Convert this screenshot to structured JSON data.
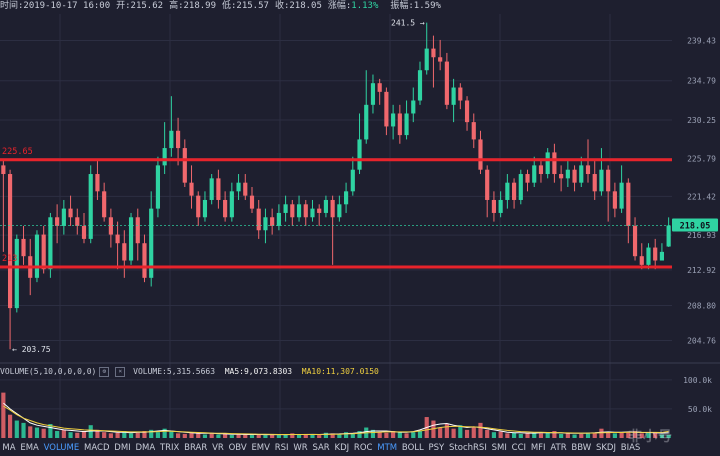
{
  "header": {
    "time_label": "时间:2019-10-17 16:00",
    "open_label": "开:215.62",
    "high_label": "高:218.99",
    "low_label": "低:215.57",
    "close_label": "收:218.05",
    "change_label": "涨幅:",
    "change_value": "1.13%",
    "amp_label": "振幅:1.59%"
  },
  "volume_bar": {
    "title": "VOLUME(5,10,0,0,0,0)",
    "volume": "VOLUME:5,315.5663",
    "ma5": "MA5:9,073.8303",
    "ma10": "MA10:11,307.0150"
  },
  "tabs": [
    "MA",
    "EMA",
    "VOLUME",
    "MACD",
    "DMI",
    "DMA",
    "TRIX",
    "BRAR",
    "VR",
    "OBV",
    "EMV",
    "RSI",
    "WR",
    "SAR",
    "KDJ",
    "ROC",
    "MTM",
    "BOLL",
    "PSY",
    "StochRSI",
    "SMI",
    "CCI",
    "MFI",
    "ATR",
    "BBW",
    "SKDJ",
    "BIAS"
  ],
  "active_tabs": [
    "VOLUME",
    "MTM"
  ],
  "logo": "非小号",
  "chart_data": {
    "type": "candlestick",
    "y_ticks": [
      "239.43",
      "234.79",
      "230.25",
      "225.79",
      "221.42",
      "216.93",
      "212.92",
      "208.80",
      "204.76"
    ],
    "y_tick_values": [
      239.43,
      234.79,
      230.25,
      225.79,
      221.42,
      216.93,
      212.92,
      208.8,
      204.76
    ],
    "ylim": [
      202.5,
      242.5
    ],
    "vol_ticks": [
      "100.0k",
      "50.0k"
    ],
    "vol_tick_values": [
      100000,
      50000
    ],
    "vol_max": 110000,
    "current_price": "218.05",
    "current_value": 218.05,
    "max_annotation": "241.5",
    "max_value": 241.5,
    "min_annotation": "203.75",
    "min_value": 203.75,
    "hlines": [
      {
        "value": 225.65,
        "label": "225.65",
        "color": "#e8232b"
      },
      {
        "value": 213.25,
        "label": "213",
        "color": "#e8232b"
      }
    ],
    "colors": {
      "up": "#2fd3a2",
      "down": "#f0686d",
      "grid": "#2c2e42",
      "ma5": "#ffffff",
      "ma10": "#f0d040"
    },
    "candles": [
      [
        225.0,
        224.0,
        225.8,
        215.0
      ],
      [
        224.0,
        208.5,
        224.5,
        203.75
      ],
      [
        208.5,
        216.5,
        217.0,
        208.0
      ],
      [
        216.5,
        214.5,
        218.0,
        213.5
      ],
      [
        214.5,
        212.0,
        216.5,
        210.0
      ],
      [
        212.0,
        217.0,
        217.5,
        211.5
      ],
      [
        217.0,
        213.0,
        218.0,
        212.5
      ],
      [
        213.0,
        219.0,
        219.5,
        212.0
      ],
      [
        219.0,
        218.0,
        220.5,
        216.0
      ],
      [
        218.0,
        220.0,
        221.0,
        217.0
      ],
      [
        220.0,
        219.0,
        221.5,
        218.0
      ],
      [
        219.0,
        218.0,
        220.0,
        217.0
      ],
      [
        218.0,
        216.5,
        219.5,
        216.0
      ],
      [
        216.5,
        224.0,
        225.0,
        216.0
      ],
      [
        224.0,
        222.0,
        225.5,
        221.0
      ],
      [
        222.0,
        219.0,
        223.0,
        218.5
      ],
      [
        219.0,
        217.0,
        220.0,
        215.5
      ],
      [
        217.0,
        216.0,
        218.5,
        213.0
      ],
      [
        216.0,
        214.0,
        217.5,
        212.0
      ],
      [
        214.0,
        219.0,
        219.5,
        213.5
      ],
      [
        219.0,
        216.0,
        220.0,
        214.0
      ],
      [
        216.0,
        212.0,
        217.0,
        211.5
      ],
      [
        212.0,
        220.0,
        222.0,
        211.0
      ],
      [
        220.0,
        225.0,
        226.0,
        219.0
      ],
      [
        225.0,
        227.0,
        230.0,
        224.0
      ],
      [
        227.0,
        229.0,
        233.0,
        226.0
      ],
      [
        229.0,
        227.0,
        230.5,
        225.0
      ],
      [
        227.0,
        223.0,
        228.0,
        222.5
      ],
      [
        223.0,
        221.5,
        225.0,
        220.0
      ],
      [
        221.5,
        219.0,
        222.0,
        218.0
      ],
      [
        219.0,
        221.0,
        222.0,
        218.5
      ],
      [
        221.0,
        223.5,
        224.0,
        220.5
      ],
      [
        223.5,
        221.0,
        224.5,
        220.0
      ],
      [
        221.0,
        219.0,
        222.0,
        218.5
      ],
      [
        219.0,
        222.0,
        223.0,
        218.5
      ],
      [
        222.0,
        223.0,
        224.0,
        221.0
      ],
      [
        223.0,
        221.5,
        224.0,
        221.0
      ],
      [
        221.5,
        220.0,
        222.5,
        219.5
      ],
      [
        220.0,
        217.5,
        221.0,
        216.5
      ],
      [
        217.5,
        219.0,
        220.0,
        216.0
      ],
      [
        219.0,
        218.0,
        220.0,
        217.0
      ],
      [
        218.0,
        219.5,
        220.5,
        217.5
      ],
      [
        219.5,
        220.5,
        221.5,
        218.5
      ],
      [
        220.5,
        219.0,
        221.0,
        218.0
      ],
      [
        219.0,
        220.5,
        221.5,
        218.5
      ],
      [
        220.5,
        219.0,
        221.0,
        218.0
      ],
      [
        219.0,
        220.0,
        221.0,
        218.5
      ],
      [
        220.0,
        219.5,
        220.5,
        218.0
      ],
      [
        219.5,
        221.0,
        221.5,
        219.0
      ],
      [
        221.0,
        219.0,
        221.5,
        213.5
      ],
      [
        219.0,
        220.5,
        221.5,
        218.5
      ],
      [
        220.5,
        222.0,
        223.0,
        219.5
      ],
      [
        222.0,
        224.5,
        226.0,
        221.5
      ],
      [
        224.5,
        228.0,
        231.0,
        224.0
      ],
      [
        228.0,
        232.0,
        236.0,
        227.5
      ],
      [
        232.0,
        234.5,
        235.5,
        231.0
      ],
      [
        234.5,
        233.5,
        235.0,
        232.0
      ],
      [
        233.5,
        229.5,
        234.0,
        228.5
      ],
      [
        229.5,
        231.0,
        232.0,
        228.0
      ],
      [
        231.0,
        228.5,
        232.0,
        227.5
      ],
      [
        228.5,
        231.0,
        232.5,
        228.0
      ],
      [
        231.0,
        232.5,
        234.0,
        230.0
      ],
      [
        232.5,
        236.0,
        237.0,
        232.0
      ],
      [
        236.0,
        238.5,
        241.5,
        235.5
      ],
      [
        238.5,
        237.5,
        240.0,
        234.0
      ],
      [
        237.5,
        237.0,
        239.5,
        236.0
      ],
      [
        237.0,
        232.0,
        238.0,
        231.5
      ],
      [
        232.0,
        234.0,
        235.0,
        230.0
      ],
      [
        234.0,
        232.5,
        234.5,
        231.5
      ],
      [
        232.5,
        230.0,
        233.0,
        229.0
      ],
      [
        230.0,
        228.0,
        231.0,
        227.0
      ],
      [
        228.0,
        224.5,
        229.0,
        224.0
      ],
      [
        224.5,
        221.0,
        225.0,
        219.0
      ],
      [
        221.0,
        219.5,
        222.0,
        218.5
      ],
      [
        219.5,
        221.0,
        222.0,
        219.0
      ],
      [
        221.0,
        223.0,
        224.0,
        220.0
      ],
      [
        223.0,
        221.0,
        223.5,
        220.0
      ],
      [
        221.0,
        224.0,
        224.5,
        220.5
      ],
      [
        224.0,
        223.0,
        224.5,
        222.0
      ],
      [
        223.0,
        225.0,
        226.0,
        222.5
      ],
      [
        225.0,
        224.0,
        225.5,
        223.0
      ],
      [
        224.0,
        226.5,
        227.0,
        223.5
      ],
      [
        226.5,
        224.0,
        227.5,
        223.0
      ],
      [
        224.0,
        223.5,
        225.0,
        222.0
      ],
      [
        223.5,
        224.5,
        225.5,
        222.5
      ],
      [
        224.5,
        223.0,
        225.0,
        222.0
      ],
      [
        223.0,
        225.0,
        226.0,
        222.5
      ],
      [
        225.0,
        224.0,
        228.0,
        223.0
      ],
      [
        224.0,
        222.0,
        225.5,
        221.0
      ],
      [
        222.0,
        224.5,
        227.0,
        221.5
      ],
      [
        224.5,
        222.0,
        225.0,
        218.5
      ],
      [
        222.0,
        220.0,
        223.0,
        219.0
      ],
      [
        220.0,
        223.0,
        225.0,
        219.5
      ],
      [
        223.0,
        218.0,
        223.5,
        216.0
      ],
      [
        218.0,
        214.5,
        219.0,
        214.0
      ],
      [
        214.5,
        213.5,
        216.0,
        213.0
      ],
      [
        213.5,
        215.5,
        216.0,
        213.0
      ],
      [
        215.5,
        214.0,
        216.5,
        213.0
      ],
      [
        214.0,
        215.0,
        216.0,
        214.0
      ],
      [
        215.62,
        218.05,
        218.99,
        215.57
      ]
    ],
    "volumes": [
      [
        78000,
        "down"
      ],
      [
        40000,
        "down"
      ],
      [
        30000,
        "up"
      ],
      [
        26000,
        "up"
      ],
      [
        20000,
        "down"
      ],
      [
        18000,
        "up"
      ],
      [
        16000,
        "down"
      ],
      [
        24000,
        "up"
      ],
      [
        12000,
        "up"
      ],
      [
        14000,
        "down"
      ],
      [
        10000,
        "up"
      ],
      [
        9000,
        "down"
      ],
      [
        12000,
        "down"
      ],
      [
        22000,
        "up"
      ],
      [
        14000,
        "down"
      ],
      [
        10000,
        "down"
      ],
      [
        8000,
        "down"
      ],
      [
        9000,
        "down"
      ],
      [
        12000,
        "up"
      ],
      [
        8000,
        "up"
      ],
      [
        9000,
        "down"
      ],
      [
        12000,
        "down"
      ],
      [
        14000,
        "up"
      ],
      [
        10000,
        "up"
      ],
      [
        16000,
        "up"
      ],
      [
        12000,
        "up"
      ],
      [
        8000,
        "down"
      ],
      [
        7000,
        "down"
      ],
      [
        10000,
        "down"
      ],
      [
        8000,
        "down"
      ],
      [
        6000,
        "up"
      ],
      [
        9000,
        "down"
      ],
      [
        6000,
        "up"
      ],
      [
        7000,
        "down"
      ],
      [
        5000,
        "up"
      ],
      [
        6000,
        "down"
      ],
      [
        7000,
        "down"
      ],
      [
        5000,
        "up"
      ],
      [
        6000,
        "down"
      ],
      [
        5000,
        "up"
      ],
      [
        7000,
        "down"
      ],
      [
        5000,
        "up"
      ],
      [
        6000,
        "up"
      ],
      [
        8000,
        "down"
      ],
      [
        6000,
        "up"
      ],
      [
        7000,
        "down"
      ],
      [
        6000,
        "up"
      ],
      [
        5000,
        "down"
      ],
      [
        9000,
        "up"
      ],
      [
        8000,
        "down"
      ],
      [
        6000,
        "up"
      ],
      [
        10000,
        "up"
      ],
      [
        7000,
        "up"
      ],
      [
        12000,
        "up"
      ],
      [
        18000,
        "up"
      ],
      [
        14000,
        "up"
      ],
      [
        10000,
        "down"
      ],
      [
        9000,
        "down"
      ],
      [
        12000,
        "down"
      ],
      [
        11000,
        "up"
      ],
      [
        8000,
        "down"
      ],
      [
        10000,
        "up"
      ],
      [
        12000,
        "up"
      ],
      [
        36000,
        "down"
      ],
      [
        30000,
        "down"
      ],
      [
        18000,
        "down"
      ],
      [
        24000,
        "down"
      ],
      [
        16000,
        "down"
      ],
      [
        22000,
        "up"
      ],
      [
        14000,
        "down"
      ],
      [
        18000,
        "down"
      ],
      [
        26000,
        "down"
      ],
      [
        14000,
        "down"
      ],
      [
        10000,
        "up"
      ],
      [
        11000,
        "down"
      ],
      [
        8000,
        "down"
      ],
      [
        9000,
        "up"
      ],
      [
        7000,
        "up"
      ],
      [
        8000,
        "down"
      ],
      [
        10000,
        "up"
      ],
      [
        8000,
        "down"
      ],
      [
        9000,
        "up"
      ],
      [
        12000,
        "down"
      ],
      [
        7000,
        "up"
      ],
      [
        8000,
        "down"
      ],
      [
        6000,
        "up"
      ],
      [
        7000,
        "down"
      ],
      [
        9000,
        "up"
      ],
      [
        8000,
        "down"
      ],
      [
        16000,
        "down"
      ],
      [
        10000,
        "down"
      ],
      [
        8000,
        "up"
      ],
      [
        9000,
        "down"
      ],
      [
        10000,
        "down"
      ],
      [
        12000,
        "down"
      ],
      [
        8000,
        "down"
      ],
      [
        9000,
        "up"
      ],
      [
        10000,
        "down"
      ],
      [
        6000,
        "up"
      ],
      [
        5300,
        "up"
      ]
    ],
    "ma5_line": [
      60000,
      50000,
      42000,
      34000,
      26000,
      22000,
      20000,
      18000,
      16000,
      14000,
      13000,
      12000,
      11000,
      12000,
      12000,
      12000,
      11000,
      10000,
      10000,
      9000,
      10000,
      10000,
      11000,
      12000,
      13000,
      12000,
      11000,
      10000,
      9000,
      8000,
      8000,
      8000,
      7500,
      7000,
      6500,
      6500,
      6000,
      6000,
      6000,
      5800,
      5800,
      5800,
      5800,
      6000,
      6000,
      6000,
      6200,
      6000,
      6500,
      6800,
      7000,
      7500,
      8000,
      9000,
      11000,
      12000,
      12000,
      12000,
      11000,
      10000,
      10000,
      11000,
      14000,
      18000,
      22000,
      24000,
      25000,
      22000,
      20000,
      18000,
      19000,
      18000,
      16000,
      14000,
      12000,
      10000,
      9000,
      9000,
      8500,
      8500,
      9000,
      9000,
      9000,
      9000,
      8000,
      8000,
      8000,
      8500,
      9000,
      10000,
      10500,
      10000,
      10000,
      10500,
      10000,
      9500,
      9500,
      9000,
      8500,
      9070
    ],
    "ma10_line": [
      55000,
      48000,
      40000,
      34000,
      30000,
      26000,
      23000,
      21000,
      19000,
      17000,
      16000,
      15000,
      14000,
      13500,
      13000,
      12500,
      12000,
      11500,
      11000,
      10500,
      10500,
      10500,
      10500,
      11000,
      11500,
      11500,
      11000,
      10500,
      10000,
      9500,
      9000,
      8500,
      8200,
      8000,
      7500,
      7200,
      7000,
      6800,
      6500,
      6300,
      6200,
      6100,
      6000,
      6000,
      6000,
      6000,
      6100,
      6100,
      6200,
      6400,
      6600,
      7000,
      7400,
      8000,
      8800,
      9500,
      10000,
      10500,
      10500,
      10500,
      10500,
      10800,
      12000,
      14000,
      16000,
      18000,
      19500,
      20000,
      20000,
      19500,
      19000,
      18500,
      17500,
      16000,
      14500,
      13000,
      12000,
      11000,
      10500,
      10000,
      9800,
      9500,
      9200,
      9000,
      8800,
      8600,
      8500,
      8500,
      8600,
      9000,
      9300,
      9400,
      9500,
      9800,
      9800,
      9700,
      9700,
      9600,
      9500,
      11307
    ]
  }
}
